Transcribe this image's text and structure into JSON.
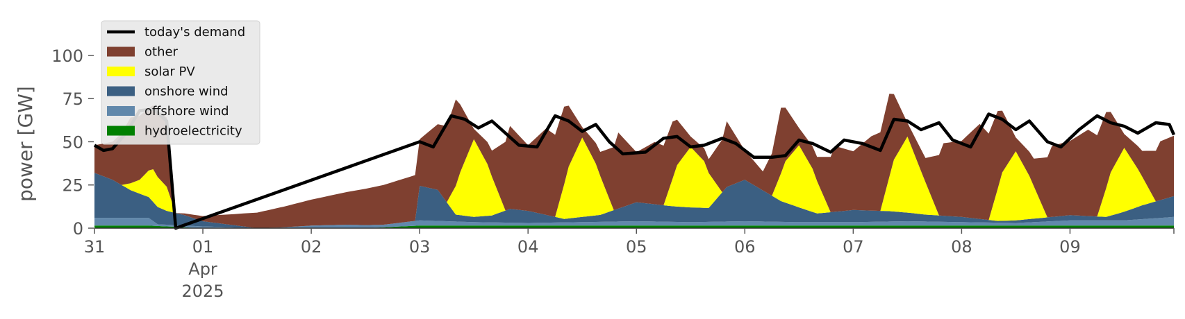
{
  "chart_data": {
    "type": "area",
    "ylabel": "power [GW]",
    "ylim": [
      0,
      120
    ],
    "yticks": [
      0,
      25,
      50,
      75,
      100
    ],
    "xlim": [
      "2025-03-31T00:00",
      "2025-04-09T23:00"
    ],
    "x_ticks": [
      {
        "x": "2025-03-31T00:00",
        "label": "31"
      },
      {
        "x": "2025-04-01T00:00",
        "label": "01",
        "label2": "Apr",
        "label3": "2025"
      },
      {
        "x": "2025-04-02T00:00",
        "label": "02"
      },
      {
        "x": "2025-04-03T00:00",
        "label": "03"
      },
      {
        "x": "2025-04-04T00:00",
        "label": "04"
      },
      {
        "x": "2025-04-05T00:00",
        "label": "05"
      },
      {
        "x": "2025-04-06T00:00",
        "label": "06"
      },
      {
        "x": "2025-04-07T00:00",
        "label": "07"
      },
      {
        "x": "2025-04-08T00:00",
        "label": "08"
      },
      {
        "x": "2025-04-09T00:00",
        "label": "09"
      }
    ],
    "grid": false,
    "legend_position": "top-left",
    "stack_order": [
      "hydroelectricity",
      "offshore wind",
      "onshore wind",
      "solar PV",
      "other"
    ],
    "series": [
      {
        "name": "hydroelectricity",
        "color": "#008000",
        "x": [
          "2025-03-31T00:00",
          "2025-03-31T12:00",
          "2025-04-01T00:00",
          "2025-04-01T12:00",
          "2025-04-02T00:00",
          "2025-04-02T12:00",
          "2025-04-03T00:00",
          "2025-04-03T12:00",
          "2025-04-04T00:00",
          "2025-04-04T12:00",
          "2025-04-05T00:00",
          "2025-04-05T12:00",
          "2025-04-06T00:00",
          "2025-04-06T12:00",
          "2025-04-07T00:00",
          "2025-04-07T12:00",
          "2025-04-08T00:00",
          "2025-04-08T12:00",
          "2025-04-09T00:00",
          "2025-04-09T12:00",
          "2025-04-09T23:00"
        ],
        "values": [
          1.5,
          1.5,
          0,
          0,
          0,
          0,
          1.5,
          1.5,
          1.5,
          1.5,
          1.5,
          1.5,
          1.5,
          1.5,
          1.5,
          1.5,
          1.5,
          1.5,
          1.5,
          1.5,
          1.5
        ]
      },
      {
        "name": "offshore wind",
        "color": "#6188ab",
        "x": [
          "2025-03-31T00:00",
          "2025-03-31T12:00",
          "2025-03-31T14:00",
          "2025-04-01T00:00",
          "2025-04-01T12:00",
          "2025-04-01T18:00",
          "2025-04-02T00:00",
          "2025-04-02T08:00",
          "2025-04-02T16:00",
          "2025-04-03T00:00",
          "2025-04-03T12:00",
          "2025-04-04T00:00",
          "2025-04-04T12:00",
          "2025-04-05T00:00",
          "2025-04-05T12:00",
          "2025-04-06T00:00",
          "2025-04-06T12:00",
          "2025-04-07T00:00",
          "2025-04-07T12:00",
          "2025-04-08T00:00",
          "2025-04-08T12:00",
          "2025-04-09T00:00",
          "2025-04-09T12:00",
          "2025-04-09T23:00"
        ],
        "values": [
          4.5,
          4.5,
          1,
          1,
          0,
          0.5,
          1.5,
          2,
          1.5,
          3,
          2,
          1.5,
          2,
          2.5,
          2,
          2.5,
          2,
          2,
          2.5,
          2,
          1.5,
          3,
          3,
          5
        ]
      },
      {
        "name": "onshore wind",
        "color": "#3b5f82",
        "x": [
          "2025-03-31T00:00",
          "2025-03-31T04:00",
          "2025-03-31T08:00",
          "2025-03-31T12:00",
          "2025-03-31T16:00",
          "2025-03-31T20:00",
          "2025-04-01T00:00",
          "2025-04-01T12:00",
          "2025-04-02T00:00",
          "2025-04-02T23:00",
          "2025-04-03T00:00",
          "2025-04-03T04:00",
          "2025-04-03T08:00",
          "2025-04-03T12:00",
          "2025-04-03T16:00",
          "2025-04-03T20:00",
          "2025-04-04T00:00",
          "2025-04-04T08:00",
          "2025-04-04T16:00",
          "2025-04-05T00:00",
          "2025-04-05T08:00",
          "2025-04-05T16:00",
          "2025-04-05T20:00",
          "2025-04-06T00:00",
          "2025-04-06T08:00",
          "2025-04-06T16:00",
          "2025-04-07T00:00",
          "2025-04-07T08:00",
          "2025-04-07T16:00",
          "2025-04-08T00:00",
          "2025-04-08T08:00",
          "2025-04-08T16:00",
          "2025-04-09T00:00",
          "2025-04-09T08:00",
          "2025-04-09T16:00",
          "2025-04-09T23:00"
        ],
        "values": [
          26,
          22,
          16,
          12,
          8,
          6,
          3,
          0,
          0,
          0,
          20,
          18,
          4,
          3,
          4,
          8,
          7,
          2,
          4,
          11,
          9,
          8,
          20,
          24,
          12,
          5,
          7,
          6,
          4,
          3,
          1,
          2,
          3,
          2,
          8,
          12
        ]
      },
      {
        "name": "solar PV",
        "color": "#ffff00",
        "x": [
          "2025-03-31T00:00",
          "2025-03-31T06:00",
          "2025-03-31T10:00",
          "2025-03-31T13:00",
          "2025-03-31T16:00",
          "2025-03-31T18:00",
          "2025-04-03T00:00",
          "2025-04-03T06:00",
          "2025-04-03T09:00",
          "2025-04-03T12:00",
          "2025-04-03T15:00",
          "2025-04-03T19:00",
          "2025-04-04T06:00",
          "2025-04-04T09:00",
          "2025-04-04T12:00",
          "2025-04-04T15:00",
          "2025-04-04T19:00",
          "2025-04-05T06:00",
          "2025-04-05T09:00",
          "2025-04-05T12:00",
          "2025-04-05T15:00",
          "2025-04-05T19:00",
          "2025-04-06T06:00",
          "2025-04-06T09:00",
          "2025-04-06T12:00",
          "2025-04-06T15:00",
          "2025-04-06T19:00",
          "2025-04-07T06:00",
          "2025-04-07T09:00",
          "2025-04-07T12:00",
          "2025-04-07T15:00",
          "2025-04-07T19:00",
          "2025-04-08T06:00",
          "2025-04-08T09:00",
          "2025-04-08T12:00",
          "2025-04-08T15:00",
          "2025-04-08T19:00",
          "2025-04-09T06:00",
          "2025-04-09T09:00",
          "2025-04-09T12:00",
          "2025-04-09T15:00",
          "2025-04-09T19:00",
          "2025-04-09T23:00"
        ],
        "values": [
          0,
          0,
          8,
          19,
          14,
          0,
          0,
          0,
          25,
          45,
          30,
          0,
          0,
          30,
          46,
          30,
          0,
          0,
          24,
          35,
          27,
          0,
          0,
          24,
          36,
          25,
          0,
          0,
          30,
          44,
          25,
          0,
          0,
          28,
          40,
          25,
          0,
          0,
          25,
          37,
          22,
          0,
          0
        ]
      },
      {
        "name": "other",
        "color": "#7f4030",
        "x": [
          "2025-03-31T00:00",
          "2025-03-31T04:00",
          "2025-03-31T08:00",
          "2025-03-31T12:00",
          "2025-03-31T16:00",
          "2025-03-31T18:00",
          "2025-04-03T00:00",
          "2025-04-03T04:00",
          "2025-04-03T08:00",
          "2025-04-03T12:00",
          "2025-04-03T16:00",
          "2025-04-03T20:00",
          "2025-04-04T00:00",
          "2025-04-04T04:00",
          "2025-04-04T08:00",
          "2025-04-04T12:00",
          "2025-04-04T16:00",
          "2025-04-04T20:00",
          "2025-04-05T00:00",
          "2025-04-05T04:00",
          "2025-04-05T08:00",
          "2025-04-05T12:00",
          "2025-04-05T16:00",
          "2025-04-05T20:00",
          "2025-04-06T00:00",
          "2025-04-06T04:00",
          "2025-04-06T08:00",
          "2025-04-06T12:00",
          "2025-04-06T16:00",
          "2025-04-06T20:00",
          "2025-04-07T00:00",
          "2025-04-07T04:00",
          "2025-04-07T08:00",
          "2025-04-07T12:00",
          "2025-04-07T16:00",
          "2025-04-07T20:00",
          "2025-04-08T00:00",
          "2025-04-08T04:00",
          "2025-04-08T08:00",
          "2025-04-08T12:00",
          "2025-04-08T16:00",
          "2025-04-08T20:00",
          "2025-04-09T00:00",
          "2025-04-09T04:00",
          "2025-04-09T08:00",
          "2025-04-09T12:00",
          "2025-04-09T16:00",
          "2025-04-09T20:00",
          "2025-04-09T23:00"
        ],
        "values": [
          16,
          22,
          38,
          36,
          40,
          0,
          27,
          38,
          50,
          6,
          15,
          48,
          38,
          50,
          45,
          6,
          14,
          44,
          29,
          36,
          33,
          6,
          8,
          38,
          17,
          11,
          38,
          10,
          14,
          38,
          34,
          43,
          48,
          8,
          14,
          42,
          44,
          55,
          45,
          8,
          16,
          41,
          43,
          50,
          44,
          8,
          15,
          34,
          35
        ]
      },
      {
        "name": "today's demand",
        "color": "#000000",
        "style": "line",
        "x": [
          "2025-03-31T00:00",
          "2025-03-31T02:00",
          "2025-03-31T04:00",
          "2025-03-31T07:00",
          "2025-03-31T10:00",
          "2025-03-31T13:00",
          "2025-03-31T16:00",
          "2025-03-31T18:00",
          "2025-04-03T00:00",
          "2025-04-03T03:00",
          "2025-04-03T07:00",
          "2025-04-03T10:00",
          "2025-04-03T13:00",
          "2025-04-03T16:00",
          "2025-04-03T19:00",
          "2025-04-03T22:00",
          "2025-04-04T02:00",
          "2025-04-04T06:00",
          "2025-04-04T09:00",
          "2025-04-04T12:00",
          "2025-04-04T15:00",
          "2025-04-04T18:00",
          "2025-04-04T21:00",
          "2025-04-05T02:00",
          "2025-04-05T06:00",
          "2025-04-05T09:00",
          "2025-04-05T12:00",
          "2025-04-05T15:00",
          "2025-04-05T19:00",
          "2025-04-05T22:00",
          "2025-04-06T02:00",
          "2025-04-06T06:00",
          "2025-04-06T09:00",
          "2025-04-06T12:00",
          "2025-04-06T15:00",
          "2025-04-06T19:00",
          "2025-04-06T22:00",
          "2025-04-07T02:00",
          "2025-04-07T06:00",
          "2025-04-07T09:00",
          "2025-04-07T12:00",
          "2025-04-07T15:00",
          "2025-04-07T19:00",
          "2025-04-07T22:00",
          "2025-04-08T02:00",
          "2025-04-08T06:00",
          "2025-04-08T09:00",
          "2025-04-08T12:00",
          "2025-04-08T15:00",
          "2025-04-08T19:00",
          "2025-04-08T22:00",
          "2025-04-09T02:00",
          "2025-04-09T06:00",
          "2025-04-09T09:00",
          "2025-04-09T12:00",
          "2025-04-09T15:00",
          "2025-04-09T19:00",
          "2025-04-09T22:00",
          "2025-04-09T23:00"
        ],
        "values": [
          48,
          45,
          46,
          55,
          68,
          69,
          62,
          0,
          50,
          47,
          65,
          63,
          58,
          62,
          55,
          48,
          47,
          65,
          62,
          56,
          60,
          50,
          43,
          44,
          52,
          53,
          47,
          48,
          52,
          49,
          41,
          41,
          42,
          51,
          49,
          44,
          51,
          49,
          45,
          63,
          62,
          57,
          61,
          51,
          47,
          66,
          63,
          57,
          62,
          50,
          47,
          57,
          65,
          61,
          59,
          55,
          61,
          60,
          54
        ]
      }
    ]
  }
}
